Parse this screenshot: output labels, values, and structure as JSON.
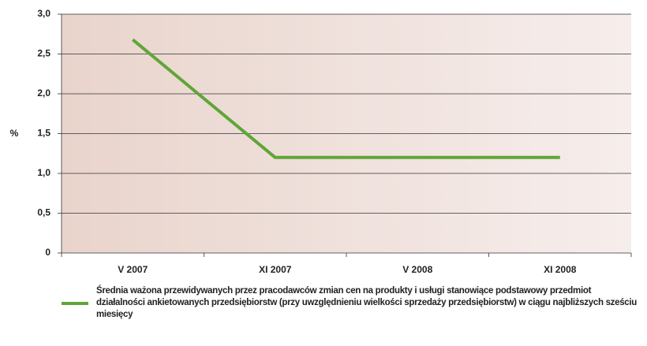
{
  "chart_data": {
    "type": "line",
    "categories": [
      "V 2007",
      "XI 2007",
      "V 2008",
      "XI 2008"
    ],
    "series": [
      {
        "name": "Średnia ważona przewidywanych przez pracodawców zmian cen na produkty i usługi stanowiące podstawowy przedmiot działalności ankietowanych przedsiębiorstw (przy uwzględnieniu wielkości sprzedaży przedsiębiorstw) w ciągu najbliższych sześciu miesięcy",
        "color": "#5fa637",
        "values": [
          2.68,
          1.2,
          1.2,
          1.2
        ]
      }
    ],
    "ylabel": "%",
    "ylim": [
      0,
      3
    ],
    "yticks": [
      0,
      {
        "value": 0.5,
        "label": "0,5"
      },
      {
        "value": 1,
        "label": "1,0"
      },
      {
        "value": 1.5,
        "label": "1,5"
      },
      {
        "value": 2,
        "label": "2,0"
      },
      {
        "value": 2.5,
        "label": "2,5"
      },
      {
        "value": 3,
        "label": "3,0"
      }
    ],
    "grid": true
  }
}
